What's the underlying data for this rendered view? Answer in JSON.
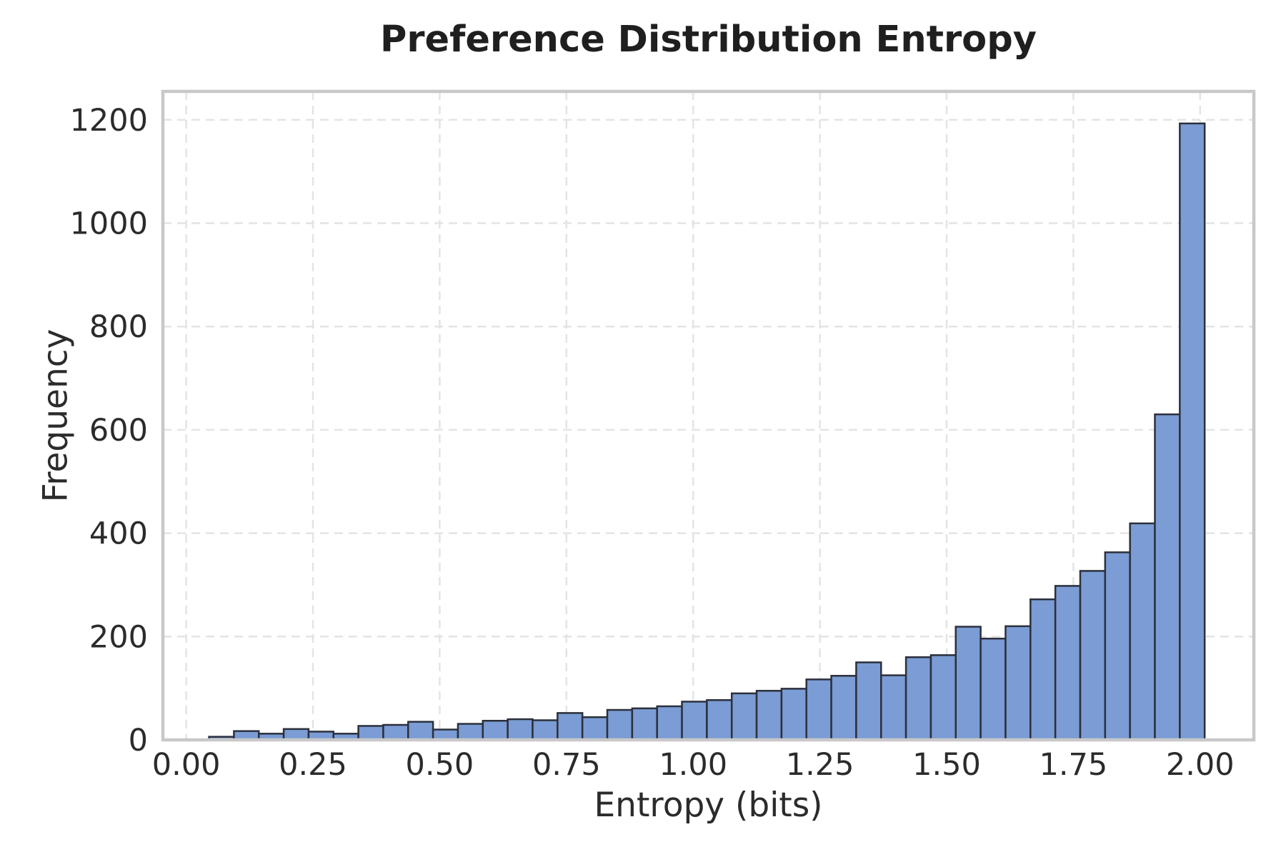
{
  "chart_data": {
    "type": "bar",
    "subtype": "histogram",
    "title": "Preference Distribution Entropy",
    "xlabel": "Entropy (bits)",
    "ylabel": "Frequency",
    "bins": {
      "start": 0.045,
      "width": 0.0491,
      "count": 40
    },
    "values": [
      6,
      17,
      12,
      21,
      16,
      12,
      27,
      29,
      35,
      20,
      31,
      37,
      40,
      38,
      52,
      44,
      58,
      61,
      65,
      74,
      77,
      90,
      95,
      99,
      117,
      124,
      150,
      125,
      160,
      164,
      219,
      196,
      220,
      272,
      298,
      327,
      363,
      419,
      630,
      1193
    ],
    "xlim": [
      -0.046,
      2.106
    ],
    "ylim": [
      0,
      1255
    ],
    "xticks": {
      "values": [
        0,
        0.25,
        0.5,
        0.75,
        1.0,
        1.25,
        1.5,
        1.75,
        2.0
      ],
      "labels": [
        "0.00",
        "0.25",
        "0.50",
        "0.75",
        "1.00",
        "1.25",
        "1.50",
        "1.75",
        "2.00"
      ]
    },
    "yticks": {
      "values": [
        0,
        200,
        400,
        600,
        800,
        1000,
        1200
      ],
      "labels": [
        "0",
        "200",
        "400",
        "600",
        "800",
        "1000",
        "1200"
      ]
    },
    "grid": {
      "show": true,
      "style": "dashed",
      "horizontal": true,
      "vertical": true
    },
    "legend": {
      "show": false
    },
    "colors": {
      "bar_fill": "#7b9cd4",
      "bar_edge": "#2b303c",
      "grid": "#e4e4e4",
      "spine": "#c8c8c8",
      "tick_text": "#2b2b2b",
      "title_text": "#1f1f1f",
      "background": "#ffffff"
    }
  }
}
